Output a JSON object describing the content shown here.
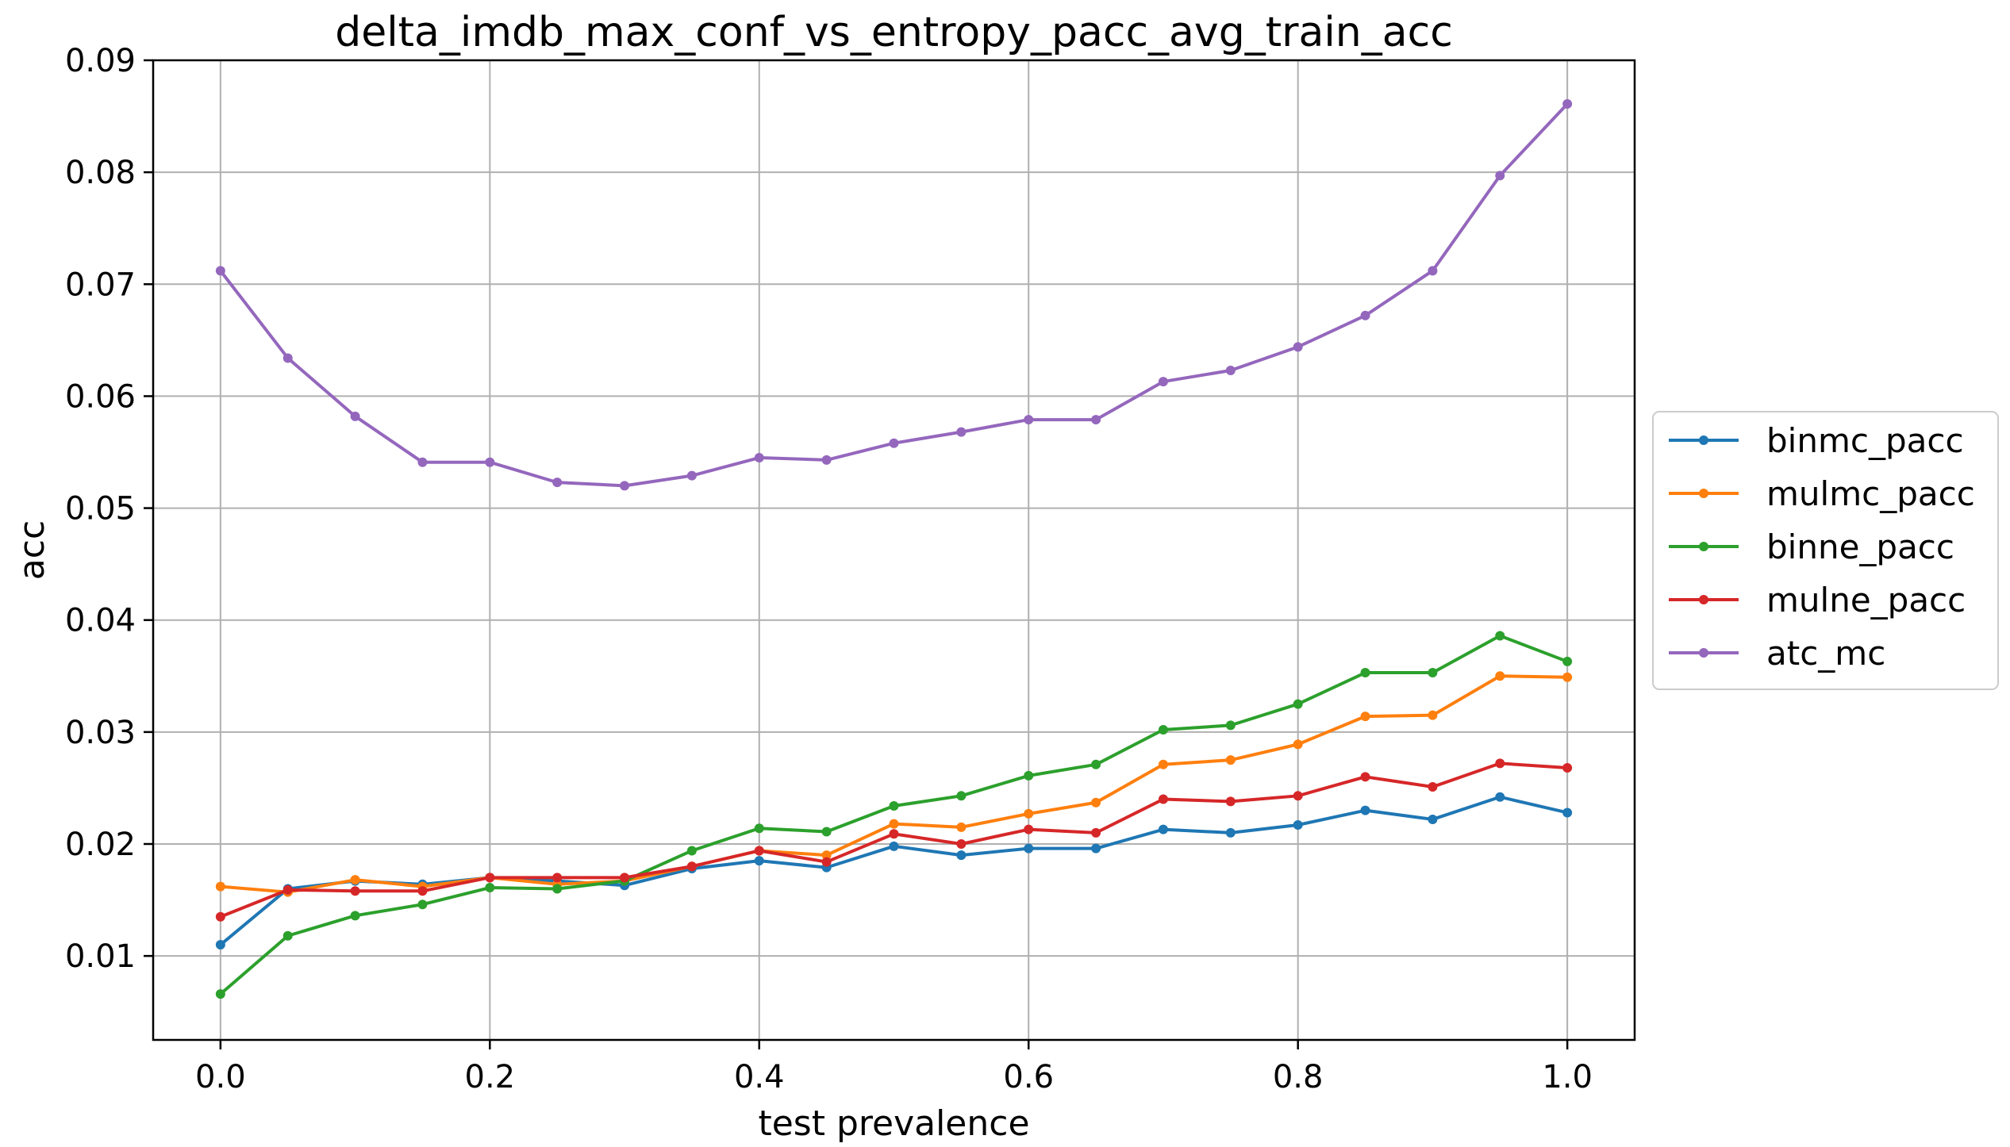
{
  "chart_data": {
    "type": "line",
    "title": "delta_imdb_max_conf_vs_entropy_pacc_avg_train_acc",
    "xlabel": "test prevalence",
    "ylabel": "acc",
    "xlim": [
      -0.05,
      1.05
    ],
    "ylim": [
      0.0025,
      0.09
    ],
    "xticks": [
      0.0,
      0.2,
      0.4,
      0.6,
      0.8,
      1.0
    ],
    "xtick_labels": [
      "0.0",
      "0.2",
      "0.4",
      "0.6",
      "0.8",
      "1.0"
    ],
    "yticks": [
      0.01,
      0.02,
      0.03,
      0.04,
      0.05,
      0.06,
      0.07,
      0.08,
      0.09
    ],
    "ytick_labels": [
      "0.01",
      "0.02",
      "0.03",
      "0.04",
      "0.05",
      "0.06",
      "0.07",
      "0.08",
      "0.09"
    ],
    "grid": true,
    "legend_position": "right, outside, vertically centered",
    "x": [
      0.0,
      0.05,
      0.1,
      0.15,
      0.2,
      0.25,
      0.3,
      0.35,
      0.4,
      0.45,
      0.5,
      0.55,
      0.6,
      0.65,
      0.7,
      0.75,
      0.8,
      0.85,
      0.9,
      0.95,
      1.0
    ],
    "series": [
      {
        "name": "binmc_pacc",
        "color": "#1f77b4",
        "values": [
          0.011,
          0.016,
          0.0167,
          0.0164,
          0.017,
          0.0167,
          0.0163,
          0.0178,
          0.0185,
          0.0179,
          0.0198,
          0.019,
          0.0196,
          0.0196,
          0.0213,
          0.021,
          0.0217,
          0.023,
          0.0222,
          0.0242,
          0.0228
        ]
      },
      {
        "name": "mulmc_pacc",
        "color": "#ff7f0e",
        "values": [
          0.0162,
          0.0157,
          0.0168,
          0.0162,
          0.017,
          0.0164,
          0.0167,
          0.018,
          0.0194,
          0.019,
          0.0218,
          0.0215,
          0.0227,
          0.0237,
          0.0271,
          0.0275,
          0.0289,
          0.0314,
          0.0315,
          0.035,
          0.0349
        ]
      },
      {
        "name": "binne_pacc",
        "color": "#2ca02c",
        "values": [
          0.0066,
          0.0118,
          0.0136,
          0.0146,
          0.0161,
          0.016,
          0.0167,
          0.0194,
          0.0214,
          0.0211,
          0.0234,
          0.0243,
          0.0261,
          0.0271,
          0.0302,
          0.0306,
          0.0325,
          0.0353,
          0.0353,
          0.0386,
          0.0363
        ]
      },
      {
        "name": "mulne_pacc",
        "color": "#d62728",
        "values": [
          0.0135,
          0.0159,
          0.0158,
          0.0158,
          0.017,
          0.017,
          0.017,
          0.018,
          0.0194,
          0.0184,
          0.0209,
          0.02,
          0.0213,
          0.021,
          0.024,
          0.0238,
          0.0243,
          0.026,
          0.0251,
          0.0272,
          0.0268
        ]
      },
      {
        "name": "atc_mc",
        "color": "#9467bd",
        "values": [
          0.0712,
          0.0634,
          0.0582,
          0.0541,
          0.0541,
          0.0523,
          0.052,
          0.0529,
          0.0545,
          0.0543,
          0.0558,
          0.0568,
          0.0579,
          0.0579,
          0.0613,
          0.0623,
          0.0644,
          0.0672,
          0.0712,
          0.0797,
          0.0861
        ]
      }
    ]
  }
}
